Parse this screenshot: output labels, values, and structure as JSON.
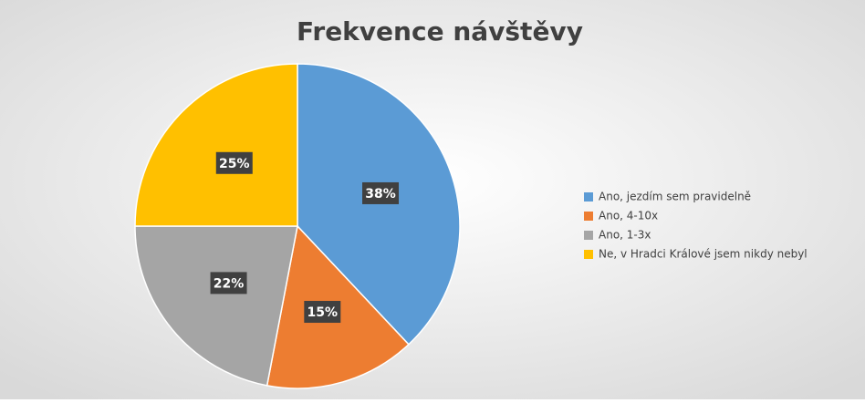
{
  "chart_data": {
    "type": "pie",
    "title": "Frekvence návštěvy",
    "categories": [
      "Ano, jezdím sem pravidelně",
      "Ano, 4-10x",
      "Ano, 1-3x",
      "Ne, v Hradci Králové jsem nikdy nebyl"
    ],
    "values": [
      38,
      15,
      22,
      25
    ],
    "value_labels": [
      "38%",
      "15%",
      "22%",
      "25%"
    ],
    "colors": [
      "#5b9bd5",
      "#ed7d31",
      "#a5a5a5",
      "#ffc000"
    ],
    "legend": "right"
  }
}
